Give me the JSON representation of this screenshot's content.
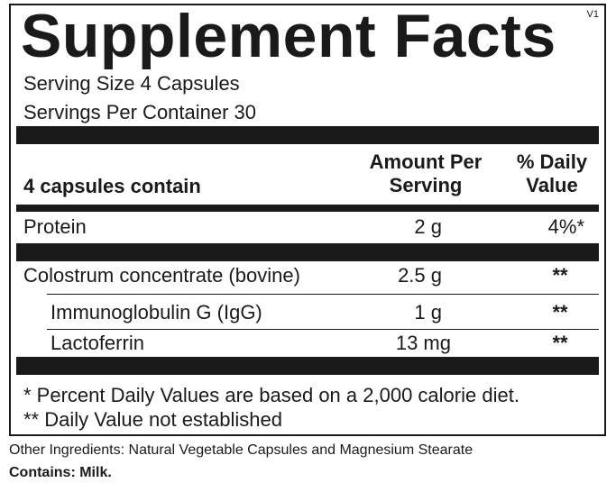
{
  "label": {
    "version": "V1",
    "title": "Supplement Facts",
    "serving_size": "Serving Size 4 Capsules",
    "servings_per_container": "Servings Per Container  30"
  },
  "table": {
    "header": {
      "col1": "4 capsules contain",
      "col2_line1": "Amount Per",
      "col2_line2": "Serving",
      "col3_line1": "% Daily",
      "col3_line2": "Value"
    },
    "rows": [
      {
        "name": "Protein",
        "amount": "2 g",
        "dv": "4%*"
      },
      {
        "name": "Colostrum concentrate (bovine)",
        "amount": "2.5 g",
        "dv": "**"
      },
      {
        "name": "Immunoglobulin G (IgG)",
        "amount": "1 g",
        "dv": "**"
      },
      {
        "name": "Lactoferrin",
        "amount": "13 mg",
        "dv": "**"
      }
    ]
  },
  "footnotes": {
    "percent_note": "* Percent Daily Values are based on a 2,000 calorie diet.",
    "not_established": "** Daily Value not established"
  },
  "other_ingredients": "Other Ingredients: Natural Vegetable Capsules and Magnesium Stearate",
  "contains": "Contains: Milk."
}
